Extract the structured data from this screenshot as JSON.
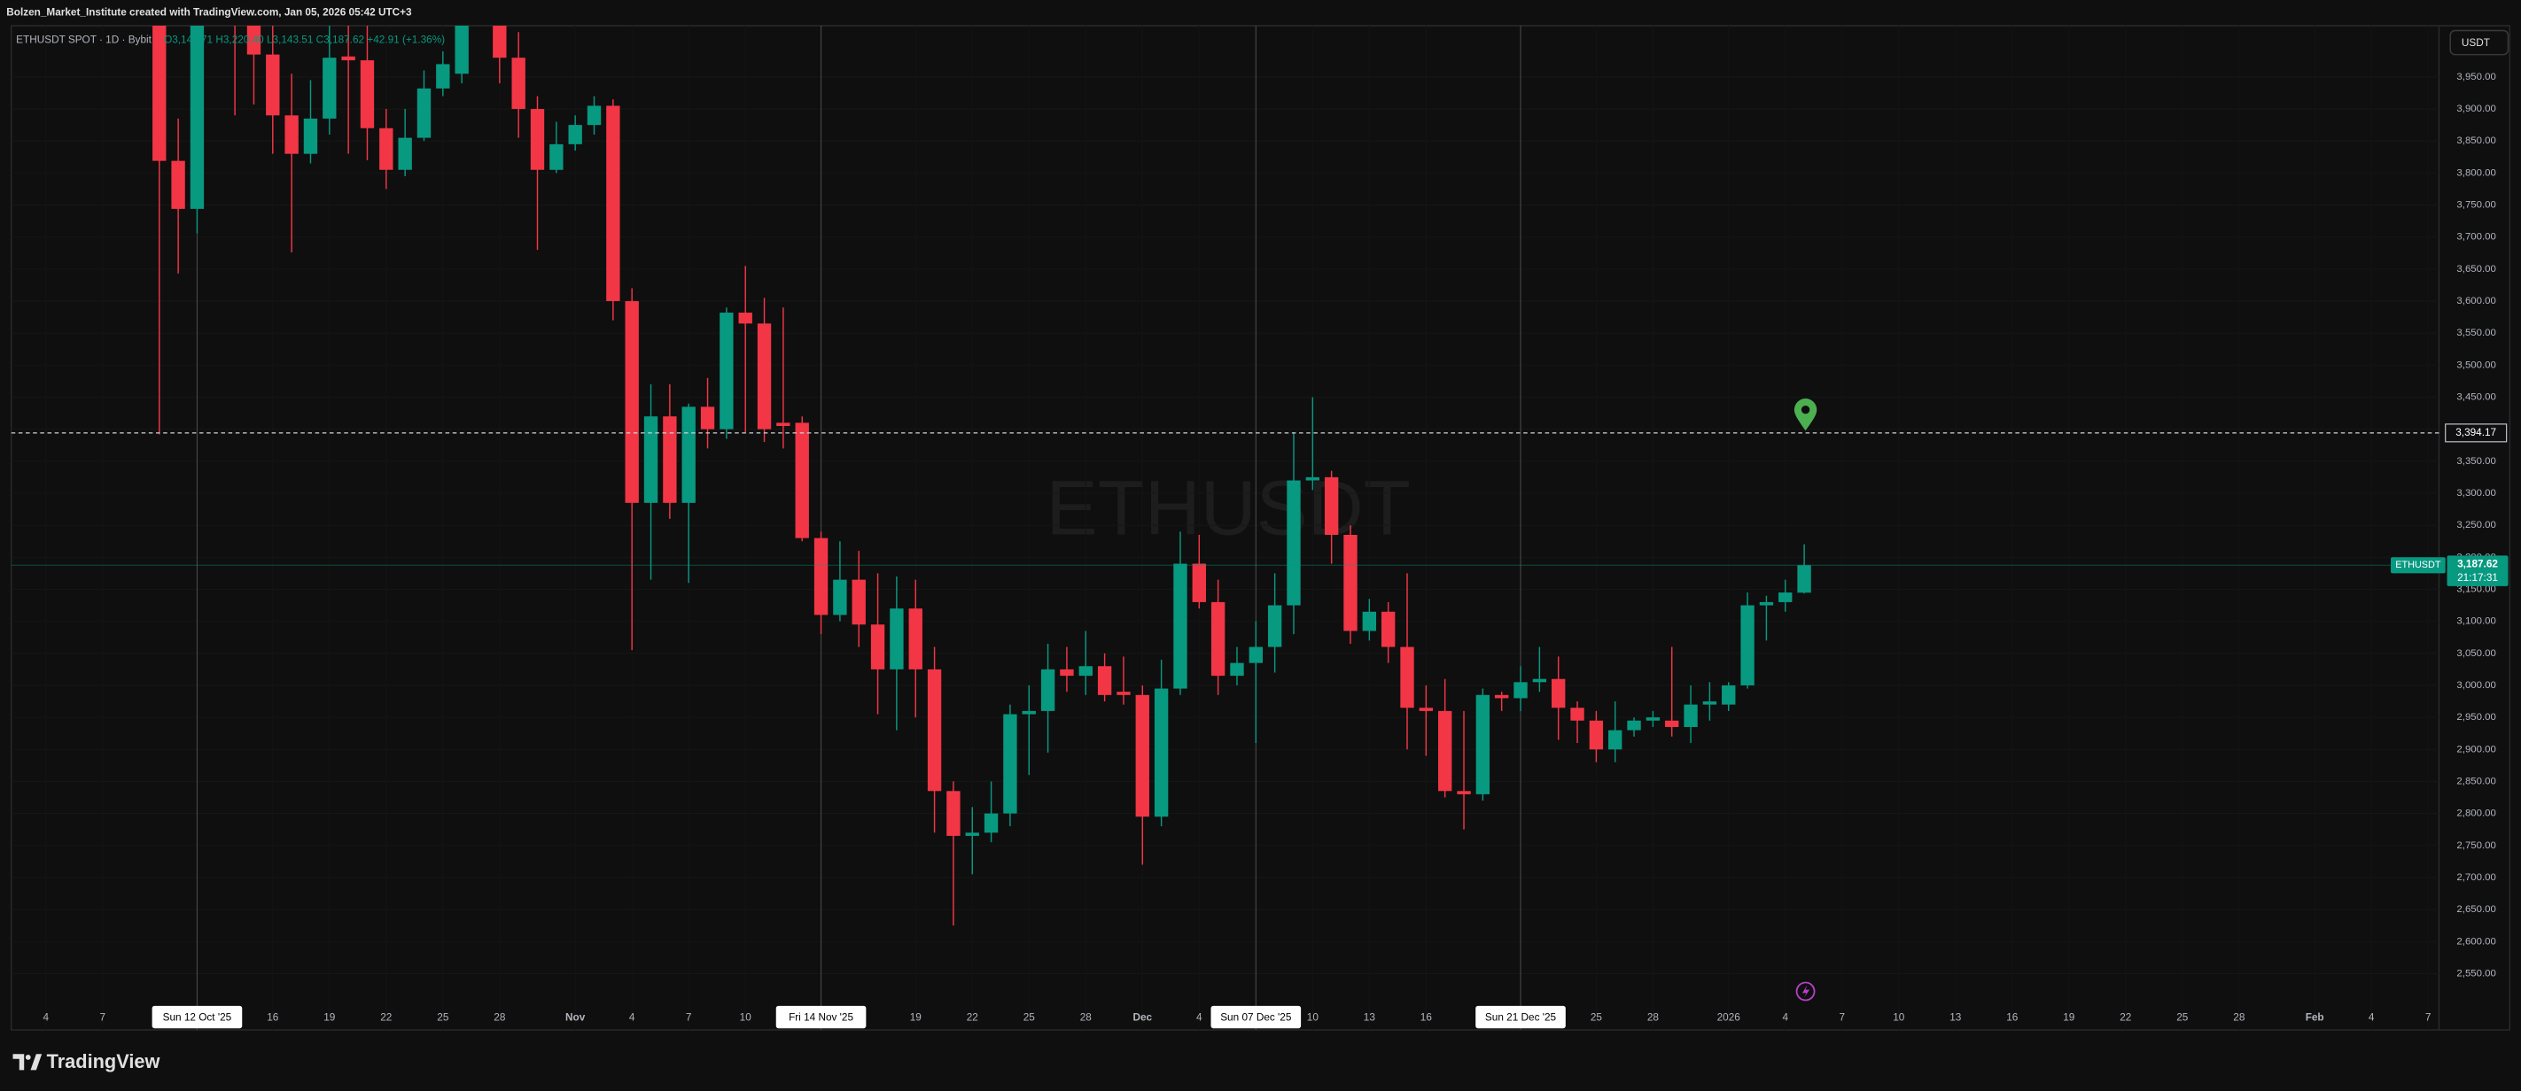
{
  "header": {
    "credit": "Bolzen_Market_Institute created with TradingView.com, Jan 05, 2026 05:42 UTC+3",
    "symbol": "ETHUSDT SPOT · 1D · Bybit",
    "ohlc": "O3,144.71 H3,220.40 L3,143.51 C3,187.62 +42.91 (+1.36%)",
    "currency": "USDT",
    "watermark": "ETHUSDT",
    "brand": "TradingView"
  },
  "chart_data": {
    "type": "candlestick",
    "up_color": "#089981",
    "down_color": "#f23645",
    "x": [
      "2025-10-10",
      "2025-10-11",
      "2025-10-12",
      "2025-10-13",
      "2025-10-14",
      "2025-10-15",
      "2025-10-16",
      "2025-10-17",
      "2025-10-18",
      "2025-10-19",
      "2025-10-20",
      "2025-10-21",
      "2025-10-22",
      "2025-10-23",
      "2025-10-24",
      "2025-10-25",
      "2025-10-26",
      "2025-10-27",
      "2025-10-28",
      "2025-10-29",
      "2025-10-30",
      "2025-10-31",
      "2025-11-01",
      "2025-11-02",
      "2025-11-03",
      "2025-11-04",
      "2025-11-05",
      "2025-11-06",
      "2025-11-07",
      "2025-11-08",
      "2025-11-09",
      "2025-11-10",
      "2025-11-11",
      "2025-11-12",
      "2025-11-13",
      "2025-11-14",
      "2025-11-15",
      "2025-11-16",
      "2025-11-17",
      "2025-11-18",
      "2025-11-19",
      "2025-11-20",
      "2025-11-21",
      "2025-11-22",
      "2025-11-23",
      "2025-11-24",
      "2025-11-25",
      "2025-11-26",
      "2025-11-27",
      "2025-11-28",
      "2025-11-29",
      "2025-11-30",
      "2025-12-01",
      "2025-12-02",
      "2025-12-03",
      "2025-12-04",
      "2025-12-05",
      "2025-12-06",
      "2025-12-07",
      "2025-12-08",
      "2025-12-09",
      "2025-12-10",
      "2025-12-11",
      "2025-12-12",
      "2025-12-13",
      "2025-12-14",
      "2025-12-15",
      "2025-12-16",
      "2025-12-17",
      "2025-12-18",
      "2025-12-19",
      "2025-12-20",
      "2025-12-21",
      "2025-12-22",
      "2025-12-23",
      "2025-12-24",
      "2025-12-25",
      "2025-12-26",
      "2025-12-27",
      "2025-12-28",
      "2025-12-29",
      "2025-12-30",
      "2025-12-31",
      "2026-01-01",
      "2026-01-02",
      "2026-01-03",
      "2026-01-04",
      "2026-01-05"
    ],
    "open": [
      4369,
      3819,
      3744,
      4155,
      4245,
      4125,
      3985,
      3890,
      3830,
      3885,
      3982,
      3976,
      3870,
      3805,
      3855,
      3932,
      3955,
      4150,
      4115,
      3980,
      3900,
      3805,
      3845,
      3875,
      3905,
      3600,
      3285,
      3420,
      3285,
      3435,
      3400,
      3582,
      3565,
      3410,
      3410,
      3230,
      3110,
      3165,
      3095,
      3025,
      3120,
      3025,
      2835,
      2765,
      2770,
      2800,
      2955,
      2960,
      3025,
      3015,
      3030,
      2990,
      2985,
      2795,
      2995,
      3190,
      3130,
      3015,
      3035,
      3060,
      3125,
      3320,
      3325,
      3235,
      3085,
      3115,
      3060,
      2965,
      2960,
      2835,
      2830,
      2985,
      2980,
      3005,
      3010,
      2965,
      2945,
      2900,
      2930,
      2945,
      2945,
      2935,
      2970,
      2970,
      3000,
      3125,
      3130,
      3144.71
    ],
    "high": [
      4390,
      3885,
      4190,
      4290,
      4250,
      4190,
      4090,
      3955,
      3945,
      4040,
      4100,
      4105,
      3900,
      3900,
      3960,
      3990,
      4170,
      4250,
      4160,
      4020,
      3920,
      3880,
      3890,
      3920,
      3915,
      3620,
      3470,
      3470,
      3440,
      3480,
      3590,
      3655,
      3605,
      3590,
      3420,
      3240,
      3225,
      3210,
      3175,
      3170,
      3165,
      3060,
      2850,
      2810,
      2850,
      2970,
      3000,
      3065,
      3060,
      3085,
      3050,
      3045,
      3000,
      3040,
      3240,
      3235,
      3165,
      3060,
      3100,
      3175,
      3395,
      3450,
      3335,
      3250,
      3135,
      3130,
      3175,
      3000,
      3010,
      2960,
      2995,
      2990,
      3030,
      3060,
      3045,
      2975,
      2960,
      2975,
      2950,
      2960,
      3060,
      3000,
      3005,
      3005,
      3145,
      3140,
      3165,
      3220.4
    ],
    "low": [
      3392,
      3643,
      3706,
      4080,
      3890,
      3907,
      3830,
      3676,
      3815,
      3860,
      3830,
      3820,
      3775,
      3795,
      3850,
      3920,
      3940,
      4100,
      3940,
      3855,
      3680,
      3800,
      3835,
      3860,
      3570,
      3055,
      3165,
      3260,
      3160,
      3370,
      3385,
      3395,
      3380,
      3370,
      3225,
      3080,
      3100,
      3060,
      2955,
      2930,
      2950,
      2770,
      2625,
      2705,
      2755,
      2780,
      2860,
      2895,
      2990,
      2985,
      2975,
      2970,
      2720,
      2780,
      2985,
      3120,
      2985,
      3000,
      2910,
      3020,
      3080,
      3305,
      3190,
      3065,
      3070,
      3035,
      2900,
      2890,
      2825,
      2775,
      2820,
      2960,
      2960,
      2990,
      2915,
      2910,
      2880,
      2880,
      2920,
      2935,
      2920,
      2910,
      2945,
      2960,
      2995,
      3070,
      3115,
      3143.51
    ],
    "close": [
      3819,
      3744,
      4155,
      4245,
      4125,
      3985,
      3890,
      3830,
      3885,
      3980,
      3976,
      3870,
      3805,
      3855,
      3932,
      3970,
      4150,
      4115,
      3980,
      3900,
      3805,
      3845,
      3875,
      3905,
      3600,
      3285,
      3420,
      3285,
      3435,
      3400,
      3582,
      3565,
      3400,
      3405,
      3230,
      3110,
      3165,
      3095,
      3025,
      3120,
      3025,
      2835,
      2765,
      2770,
      2800,
      2955,
      2960,
      3025,
      3015,
      3030,
      2985,
      2985,
      2795,
      2995,
      3190,
      3130,
      3015,
      3035,
      3060,
      3125,
      3320,
      3325,
      3235,
      3085,
      3115,
      3060,
      2965,
      2960,
      2835,
      2830,
      2985,
      2980,
      3005,
      3010,
      2965,
      2945,
      2900,
      2930,
      2945,
      2950,
      2935,
      2970,
      2975,
      3000,
      3125,
      3130,
      3145,
      3187.62
    ],
    "xlim": [
      "2025-10-02",
      "2026-02-08"
    ],
    "ylim": [
      2462,
      4030
    ],
    "yticks": [
      {
        "value": 2550,
        "label": "2,550.00"
      },
      {
        "value": 2600,
        "label": "2,600.00"
      },
      {
        "value": 2650,
        "label": "2,650.00"
      },
      {
        "value": 2700,
        "label": "2,700.00"
      },
      {
        "value": 2750,
        "label": "2,750.00"
      },
      {
        "value": 2800,
        "label": "2,800.00"
      },
      {
        "value": 2850,
        "label": "2,850.00"
      },
      {
        "value": 2900,
        "label": "2,900.00"
      },
      {
        "value": 2950,
        "label": "2,950.00"
      },
      {
        "value": 3000,
        "label": "3,000.00"
      },
      {
        "value": 3050,
        "label": "3,050.00"
      },
      {
        "value": 3100,
        "label": "3,100.00"
      },
      {
        "value": 3150,
        "label": "3,150.00"
      },
      {
        "value": 3200,
        "label": "3,200.00"
      },
      {
        "value": 3250,
        "label": "3,250.00"
      },
      {
        "value": 3300,
        "label": "3,300.00"
      },
      {
        "value": 3350,
        "label": "3,350.00"
      },
      {
        "value": 3400,
        "label": "3,400.00"
      },
      {
        "value": 3450,
        "label": "3,450.00"
      },
      {
        "value": 3500,
        "label": "3,500.00"
      },
      {
        "value": 3550,
        "label": "3,550.00"
      },
      {
        "value": 3600,
        "label": "3,600.00"
      },
      {
        "value": 3650,
        "label": "3,650.00"
      },
      {
        "value": 3700,
        "label": "3,700.00"
      },
      {
        "value": 3750,
        "label": "3,750.00"
      },
      {
        "value": 3800,
        "label": "3,800.00"
      },
      {
        "value": 3850,
        "label": "3,850.00"
      },
      {
        "value": 3900,
        "label": "3,900.00"
      },
      {
        "value": 3950,
        "label": "3,950.00"
      }
    ],
    "xticks": [
      {
        "value": "2025-10-04",
        "label": "4"
      },
      {
        "value": "2025-10-07",
        "label": "7"
      },
      {
        "value": "2025-10-12",
        "label": "Sun 12 Oct '25",
        "highlight": true
      },
      {
        "value": "2025-10-16",
        "label": "16"
      },
      {
        "value": "2025-10-19",
        "label": "19"
      },
      {
        "value": "2025-10-22",
        "label": "22"
      },
      {
        "value": "2025-10-25",
        "label": "25"
      },
      {
        "value": "2025-10-28",
        "label": "28"
      },
      {
        "value": "2025-11-01",
        "label": "Nov"
      },
      {
        "value": "2025-11-04",
        "label": "4"
      },
      {
        "value": "2025-11-07",
        "label": "7"
      },
      {
        "value": "2025-11-10",
        "label": "10"
      },
      {
        "value": "2025-11-14",
        "label": "Fri 14 Nov '25",
        "highlight": true
      },
      {
        "value": "2025-11-19",
        "label": "19"
      },
      {
        "value": "2025-11-22",
        "label": "22"
      },
      {
        "value": "2025-11-25",
        "label": "25"
      },
      {
        "value": "2025-11-28",
        "label": "28"
      },
      {
        "value": "2025-12-01",
        "label": "Dec"
      },
      {
        "value": "2025-12-04",
        "label": "4"
      },
      {
        "value": "2025-12-07",
        "label": "Sun 07 Dec '25",
        "highlight": true
      },
      {
        "value": "2025-12-10",
        "label": "10"
      },
      {
        "value": "2025-12-13",
        "label": "13"
      },
      {
        "value": "2025-12-16",
        "label": "16"
      },
      {
        "value": "2025-12-21",
        "label": "Sun 21 Dec '25",
        "highlight": true
      },
      {
        "value": "2025-12-25",
        "label": "25"
      },
      {
        "value": "2025-12-28",
        "label": "28"
      },
      {
        "value": "2026-01-01",
        "label": "2026"
      },
      {
        "value": "2026-01-04",
        "label": "4"
      },
      {
        "value": "2026-01-07",
        "label": "7"
      },
      {
        "value": "2026-01-10",
        "label": "10"
      },
      {
        "value": "2026-01-13",
        "label": "13"
      },
      {
        "value": "2026-01-16",
        "label": "16"
      },
      {
        "value": "2026-01-19",
        "label": "19"
      },
      {
        "value": "2026-01-22",
        "label": "22"
      },
      {
        "value": "2026-01-25",
        "label": "25"
      },
      {
        "value": "2026-01-28",
        "label": "28"
      },
      {
        "value": "2026-02-01",
        "label": "Feb"
      },
      {
        "value": "2026-02-04",
        "label": "4"
      },
      {
        "value": "2026-02-07",
        "label": "7"
      }
    ],
    "price_line": {
      "value": 3394.17,
      "label": "3,394.17"
    },
    "last_price": {
      "name": "ETHUSDT",
      "value": 3187.62,
      "label": "3,187.62",
      "countdown": "21:17:31"
    }
  }
}
